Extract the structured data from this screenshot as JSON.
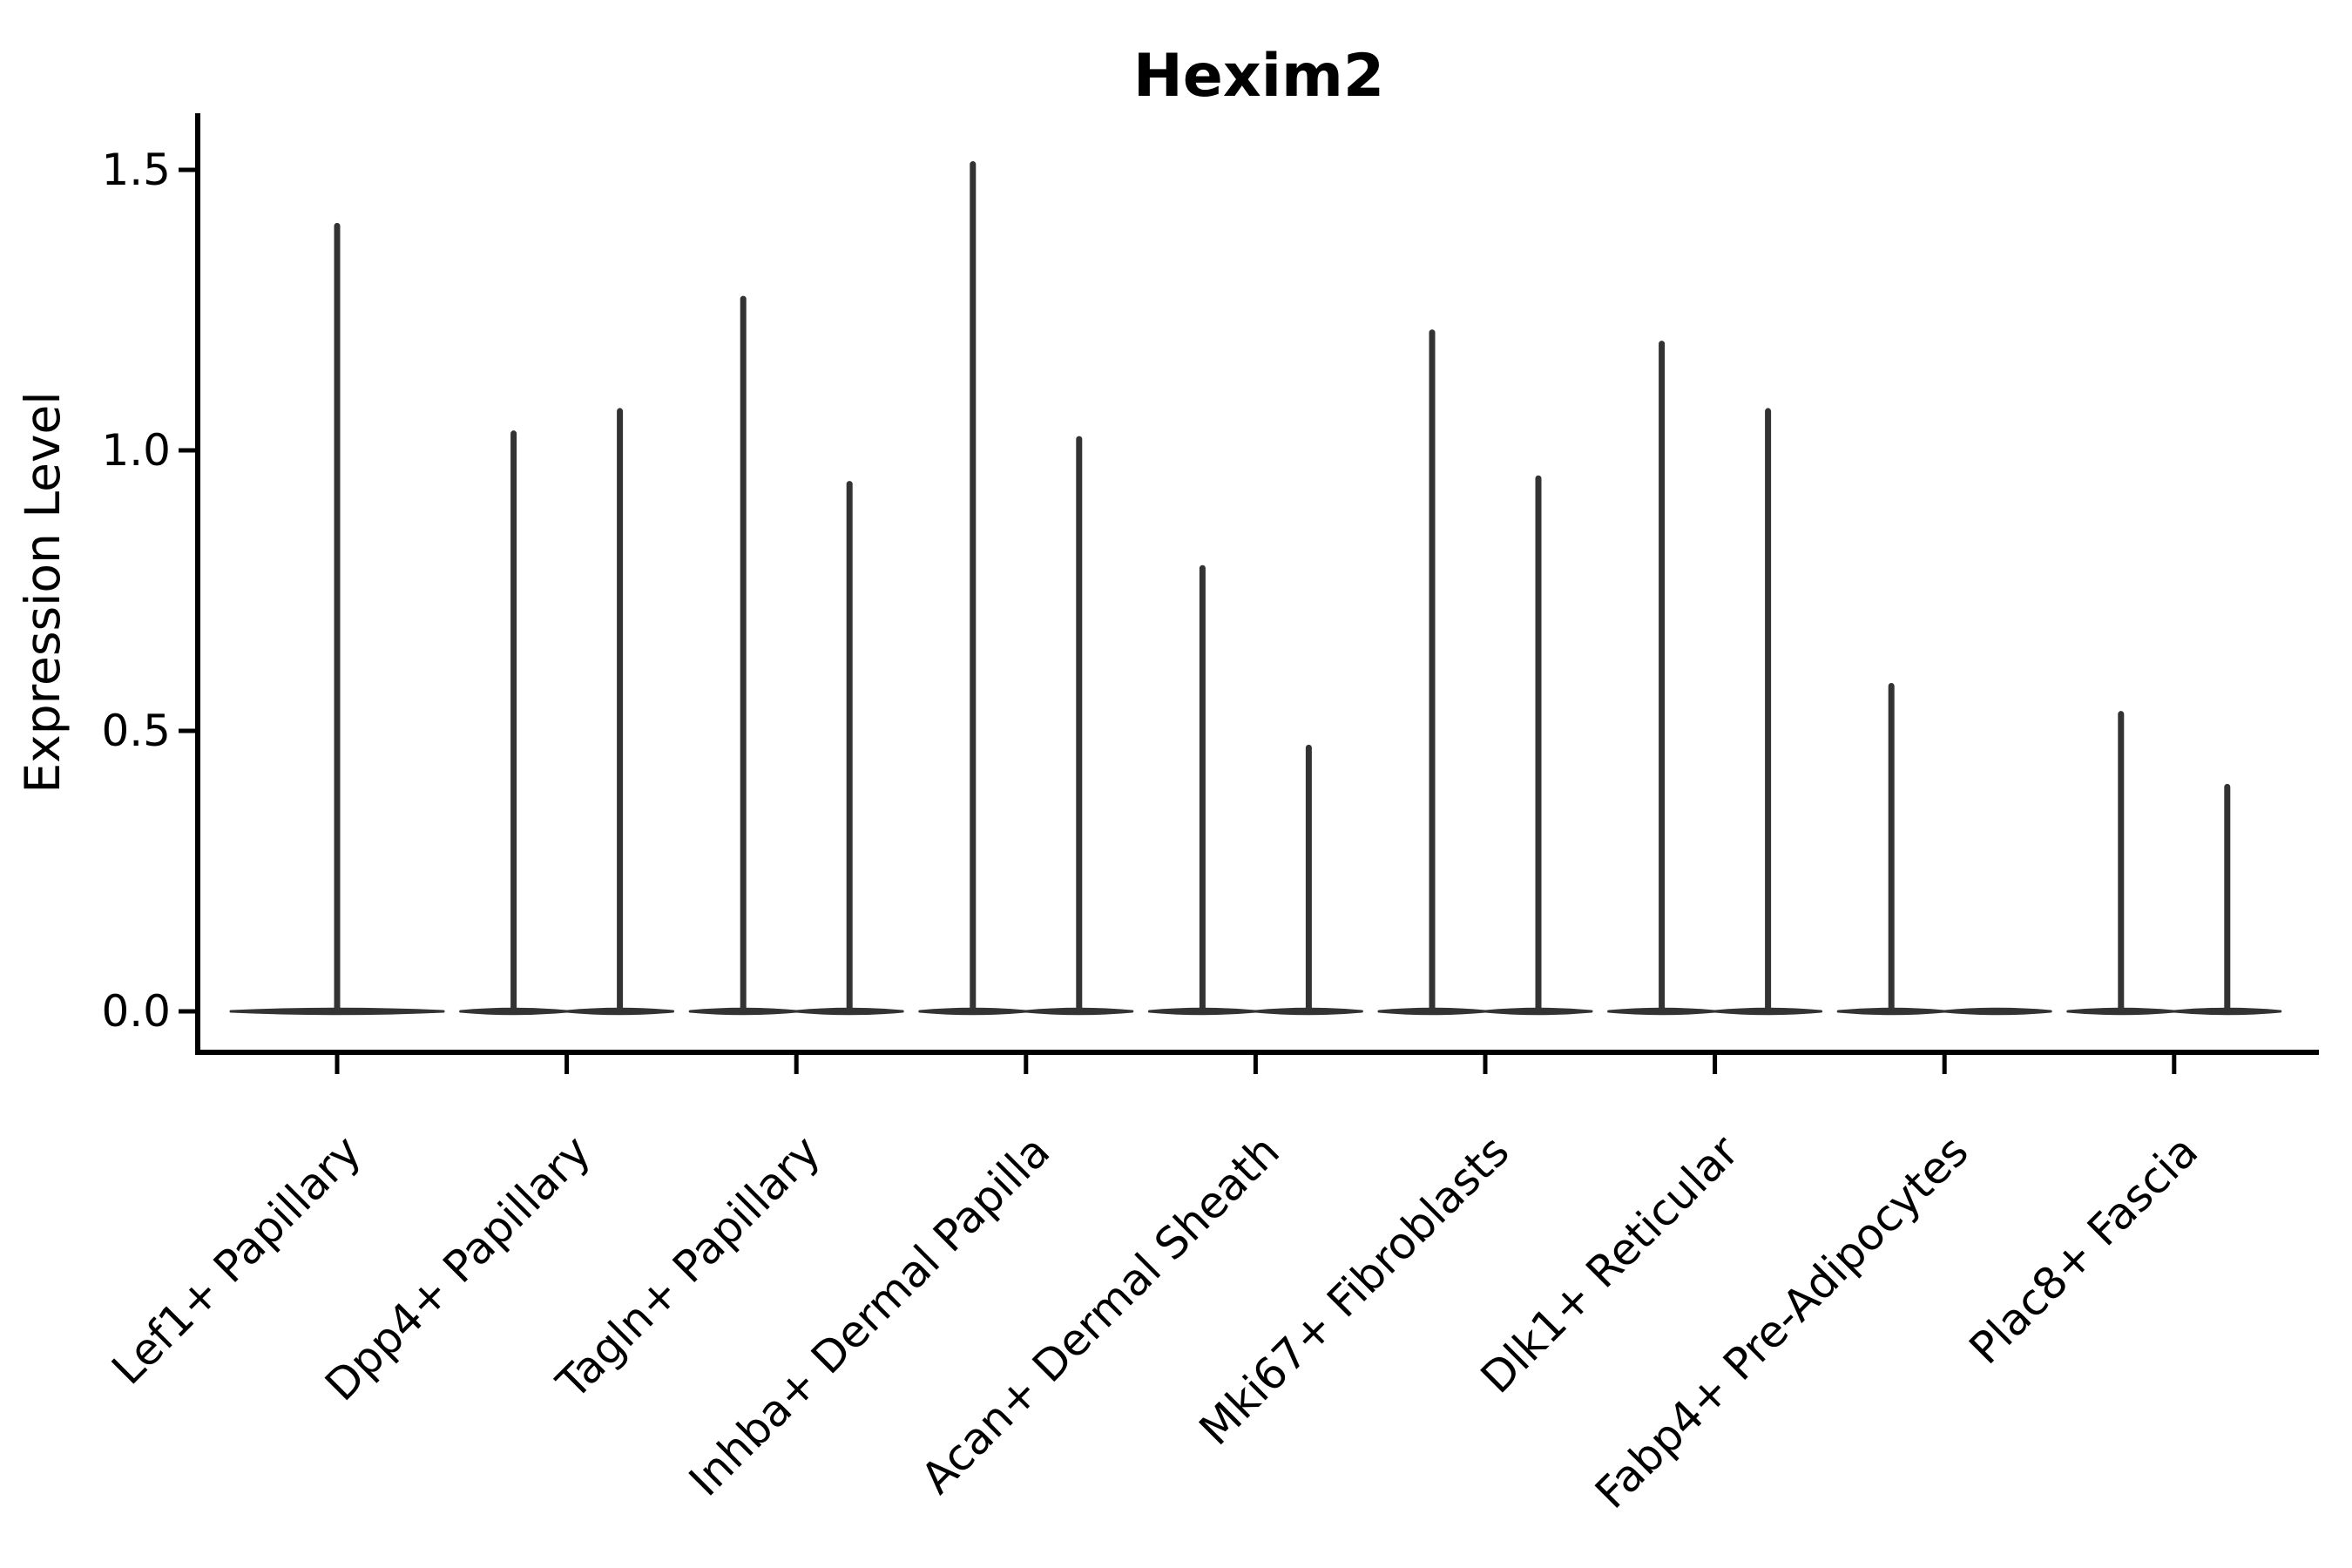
{
  "chart_data": {
    "type": "violin",
    "title": "Hexim2",
    "xlabel": "",
    "ylabel": "Expression Level",
    "yticks": [
      "0.0",
      "0.5",
      "1.0",
      "1.5"
    ],
    "ytick_values": [
      0.0,
      0.5,
      1.0,
      1.5
    ],
    "ylim": [
      -0.07,
      1.6
    ],
    "grid": false,
    "legend": "none",
    "style": {
      "violin_color": "#333333",
      "axis_color": "#000000",
      "text_color": "#000000",
      "background": "#ffffff"
    },
    "description_of_marks": "Each violin is collapsed to a thin horizontal body at expression 0 with a narrow spike rising to the group maximum",
    "categories": [
      {
        "label": "Lef1+ Papillary",
        "violins": [
          {
            "position": "center",
            "max": 1.4
          }
        ]
      },
      {
        "label": "Dpp4+ Papillary",
        "violins": [
          {
            "position": "left",
            "max": 1.03
          },
          {
            "position": "right",
            "max": 1.07
          }
        ]
      },
      {
        "label": "Tagln+ Papillary",
        "violins": [
          {
            "position": "left",
            "max": 1.27
          },
          {
            "position": "right",
            "max": 0.94
          }
        ]
      },
      {
        "label": "Inhba+ Dermal Papilla",
        "violins": [
          {
            "position": "left",
            "max": 1.51
          },
          {
            "position": "right",
            "max": 1.02
          }
        ]
      },
      {
        "label": "Acan+ Dermal Sheath",
        "violins": [
          {
            "position": "left",
            "max": 0.79
          },
          {
            "position": "right",
            "max": 0.47
          }
        ]
      },
      {
        "label": "Mki67+ Fibroblasts",
        "violins": [
          {
            "position": "left",
            "max": 1.21
          },
          {
            "position": "right",
            "max": 0.95
          }
        ]
      },
      {
        "label": "Dlk1+ Reticular",
        "violins": [
          {
            "position": "left",
            "max": 1.19
          },
          {
            "position": "right",
            "max": 1.07
          }
        ]
      },
      {
        "label": "Fabp4+ Pre-Adipocytes",
        "violins": [
          {
            "position": "left",
            "max": 0.58
          },
          {
            "position": "right",
            "max": 0.0
          }
        ]
      },
      {
        "label": "Plac8+ Fascia",
        "violins": [
          {
            "position": "left",
            "max": 0.53
          },
          {
            "position": "right",
            "max": 0.4
          }
        ]
      }
    ]
  }
}
